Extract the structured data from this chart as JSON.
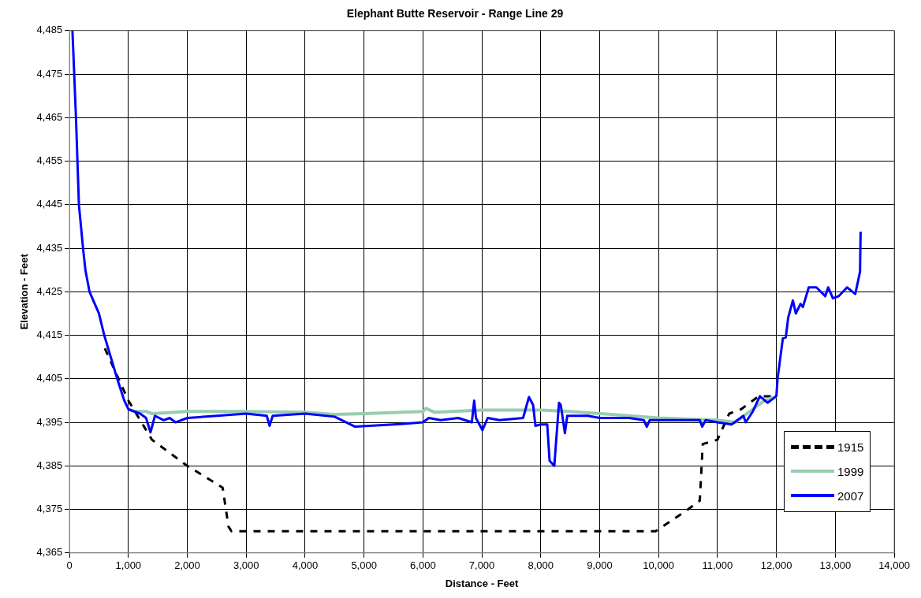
{
  "chart_data": {
    "type": "line",
    "title": "Elephant Butte Reservoir - Range Line 29",
    "xlabel": "Distance - Feet",
    "ylabel": "Elevation - Feet",
    "xlim": [
      0,
      14000
    ],
    "xticks": [
      0,
      {
        "value": 1000,
        "label": "1,000"
      },
      {
        "value": 2000,
        "label": "2,000"
      },
      {
        "value": 3000,
        "label": "3,000"
      },
      {
        "value": 4000,
        "label": "4,000"
      },
      {
        "value": 5000,
        "label": "5,000"
      },
      {
        "value": 6000,
        "label": "6,000"
      },
      {
        "value": 7000,
        "label": "7,000"
      },
      {
        "value": 8000,
        "label": "8,000"
      },
      {
        "value": 9000,
        "label": "9,000"
      },
      {
        "value": 10000,
        "label": "10,000"
      },
      {
        "value": 11000,
        "label": "11,000"
      },
      {
        "value": 12000,
        "label": "12,000"
      },
      {
        "value": 13000,
        "label": "13,000"
      },
      {
        "value": 14000,
        "label": "14,000"
      }
    ],
    "ylim": [
      4365,
      4485
    ],
    "yticks": [
      {
        "value": 4365,
        "label": "4,365"
      },
      {
        "value": 4375,
        "label": "4,375"
      },
      {
        "value": 4385,
        "label": "4,385"
      },
      {
        "value": 4395,
        "label": "4,395"
      },
      {
        "value": 4405,
        "label": "4,405"
      },
      {
        "value": 4415,
        "label": "4,415"
      },
      {
        "value": 4425,
        "label": "4,425"
      },
      {
        "value": 4435,
        "label": "4,435"
      },
      {
        "value": 4445,
        "label": "4,445"
      },
      {
        "value": 4455,
        "label": "4,455"
      },
      {
        "value": 4465,
        "label": "4,465"
      },
      {
        "value": 4475,
        "label": "4,475"
      },
      {
        "value": 4485,
        "label": "4,485"
      }
    ],
    "grid": true,
    "legend": "bottom right",
    "marker": "none",
    "series": [
      {
        "name": "1915",
        "color": "#000000",
        "line_style": "dashed",
        "x": [
          600,
          800,
          1000,
          1400,
          2000,
          2600,
          2700,
          2750,
          9950,
          10500,
          10700,
          10750,
          11000,
          11200,
          11400,
          11700,
          12000
        ],
        "values": [
          4412,
          4406,
          4400,
          4391,
          4385,
          4380,
          4371,
          4370,
          4370,
          4375,
          4377,
          4390,
          4391,
          4397,
          4398,
          4401,
          4401
        ]
      },
      {
        "name": "1999",
        "color": "#99ccb0",
        "line_style": "solid",
        "x": [
          1000,
          1100,
          1300,
          1400,
          2000,
          3000,
          4000,
          4500,
          5000,
          6000,
          6050,
          6200,
          7000,
          8000,
          8500,
          9000,
          10000,
          11000,
          11300,
          11600,
          11800,
          12000
        ],
        "values": [
          4398,
          4397.5,
          4397.5,
          4397,
          4397.5,
          4397.5,
          4397.3,
          4396.8,
          4397,
          4397.5,
          4398.2,
          4397.3,
          4397.8,
          4397.8,
          4397.5,
          4397,
          4396,
          4395.5,
          4395,
          4398,
          4400,
          4401
        ]
      },
      {
        "name": "2007",
        "color": "#0000ff",
        "line_style": "solid",
        "x": [
          50,
          80,
          110,
          135,
          160,
          230,
          270,
          340,
          500,
          590,
          700,
          810,
          930,
          1000,
          1200,
          1300,
          1375,
          1450,
          1600,
          1700,
          1800,
          2000,
          2500,
          3000,
          3350,
          3395,
          3450,
          4000,
          4500,
          4850,
          5500,
          6000,
          6100,
          6300,
          6600,
          6830,
          6870,
          6900,
          7010,
          7100,
          7300,
          7700,
          7800,
          7870,
          7910,
          8000,
          8110,
          8150,
          8230,
          8310,
          8340,
          8410,
          8450,
          8800,
          9000,
          9500,
          9750,
          9800,
          9850,
          10500,
          10700,
          10740,
          10800,
          11000,
          11240,
          11440,
          11480,
          11600,
          11720,
          11850,
          12000,
          12020,
          12110,
          12160,
          12200,
          12280,
          12330,
          12410,
          12450,
          12550,
          12680,
          12830,
          12880,
          12960,
          13060,
          13200,
          13340,
          13420,
          13430
        ],
        "values": [
          4485,
          4475,
          4465,
          4455,
          4445,
          4435,
          4430,
          4425,
          4420,
          4415,
          4410,
          4405,
          4400,
          4398,
          4397,
          4396,
          4392.7,
          4396.5,
          4395.5,
          4396,
          4395,
          4396,
          4396.5,
          4397,
          4396.5,
          4394.2,
          4396.5,
          4397,
          4396.3,
          4394,
          4394.5,
          4395,
          4396,
          4395.5,
          4396,
          4395,
          4400,
          4396,
          4393.2,
          4396,
          4395.5,
          4396,
          4400.8,
          4399,
          4394.2,
          4394.5,
          4394.5,
          4386.2,
          4385,
          4399.5,
          4399,
          4392.5,
          4396.5,
          4396.5,
          4396,
          4396,
          4395.5,
          4394,
          4395.5,
          4395.5,
          4395.5,
          4394,
          4395.5,
          4395,
          4394.5,
          4396.5,
          4395,
          4397.5,
          4401,
          4399.5,
          4401,
          4405,
          4414.3,
          4414.5,
          4419,
          4423,
          4420,
          4422.2,
          4421.5,
          4426,
          4426,
          4424,
          4426,
          4423.5,
          4424,
          4426,
          4424.5,
          4429.6,
          4438.8
        ]
      }
    ]
  }
}
